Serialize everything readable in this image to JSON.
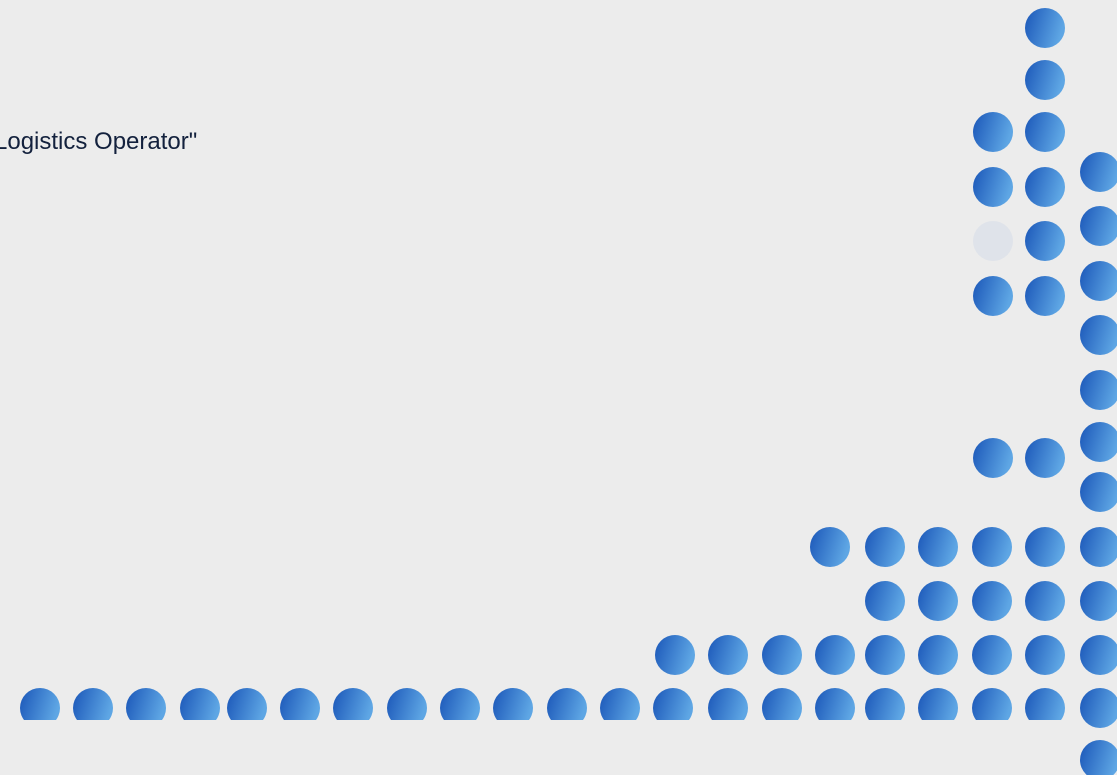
{
  "heading": {
    "text": "Logistics Operator\""
  }
}
